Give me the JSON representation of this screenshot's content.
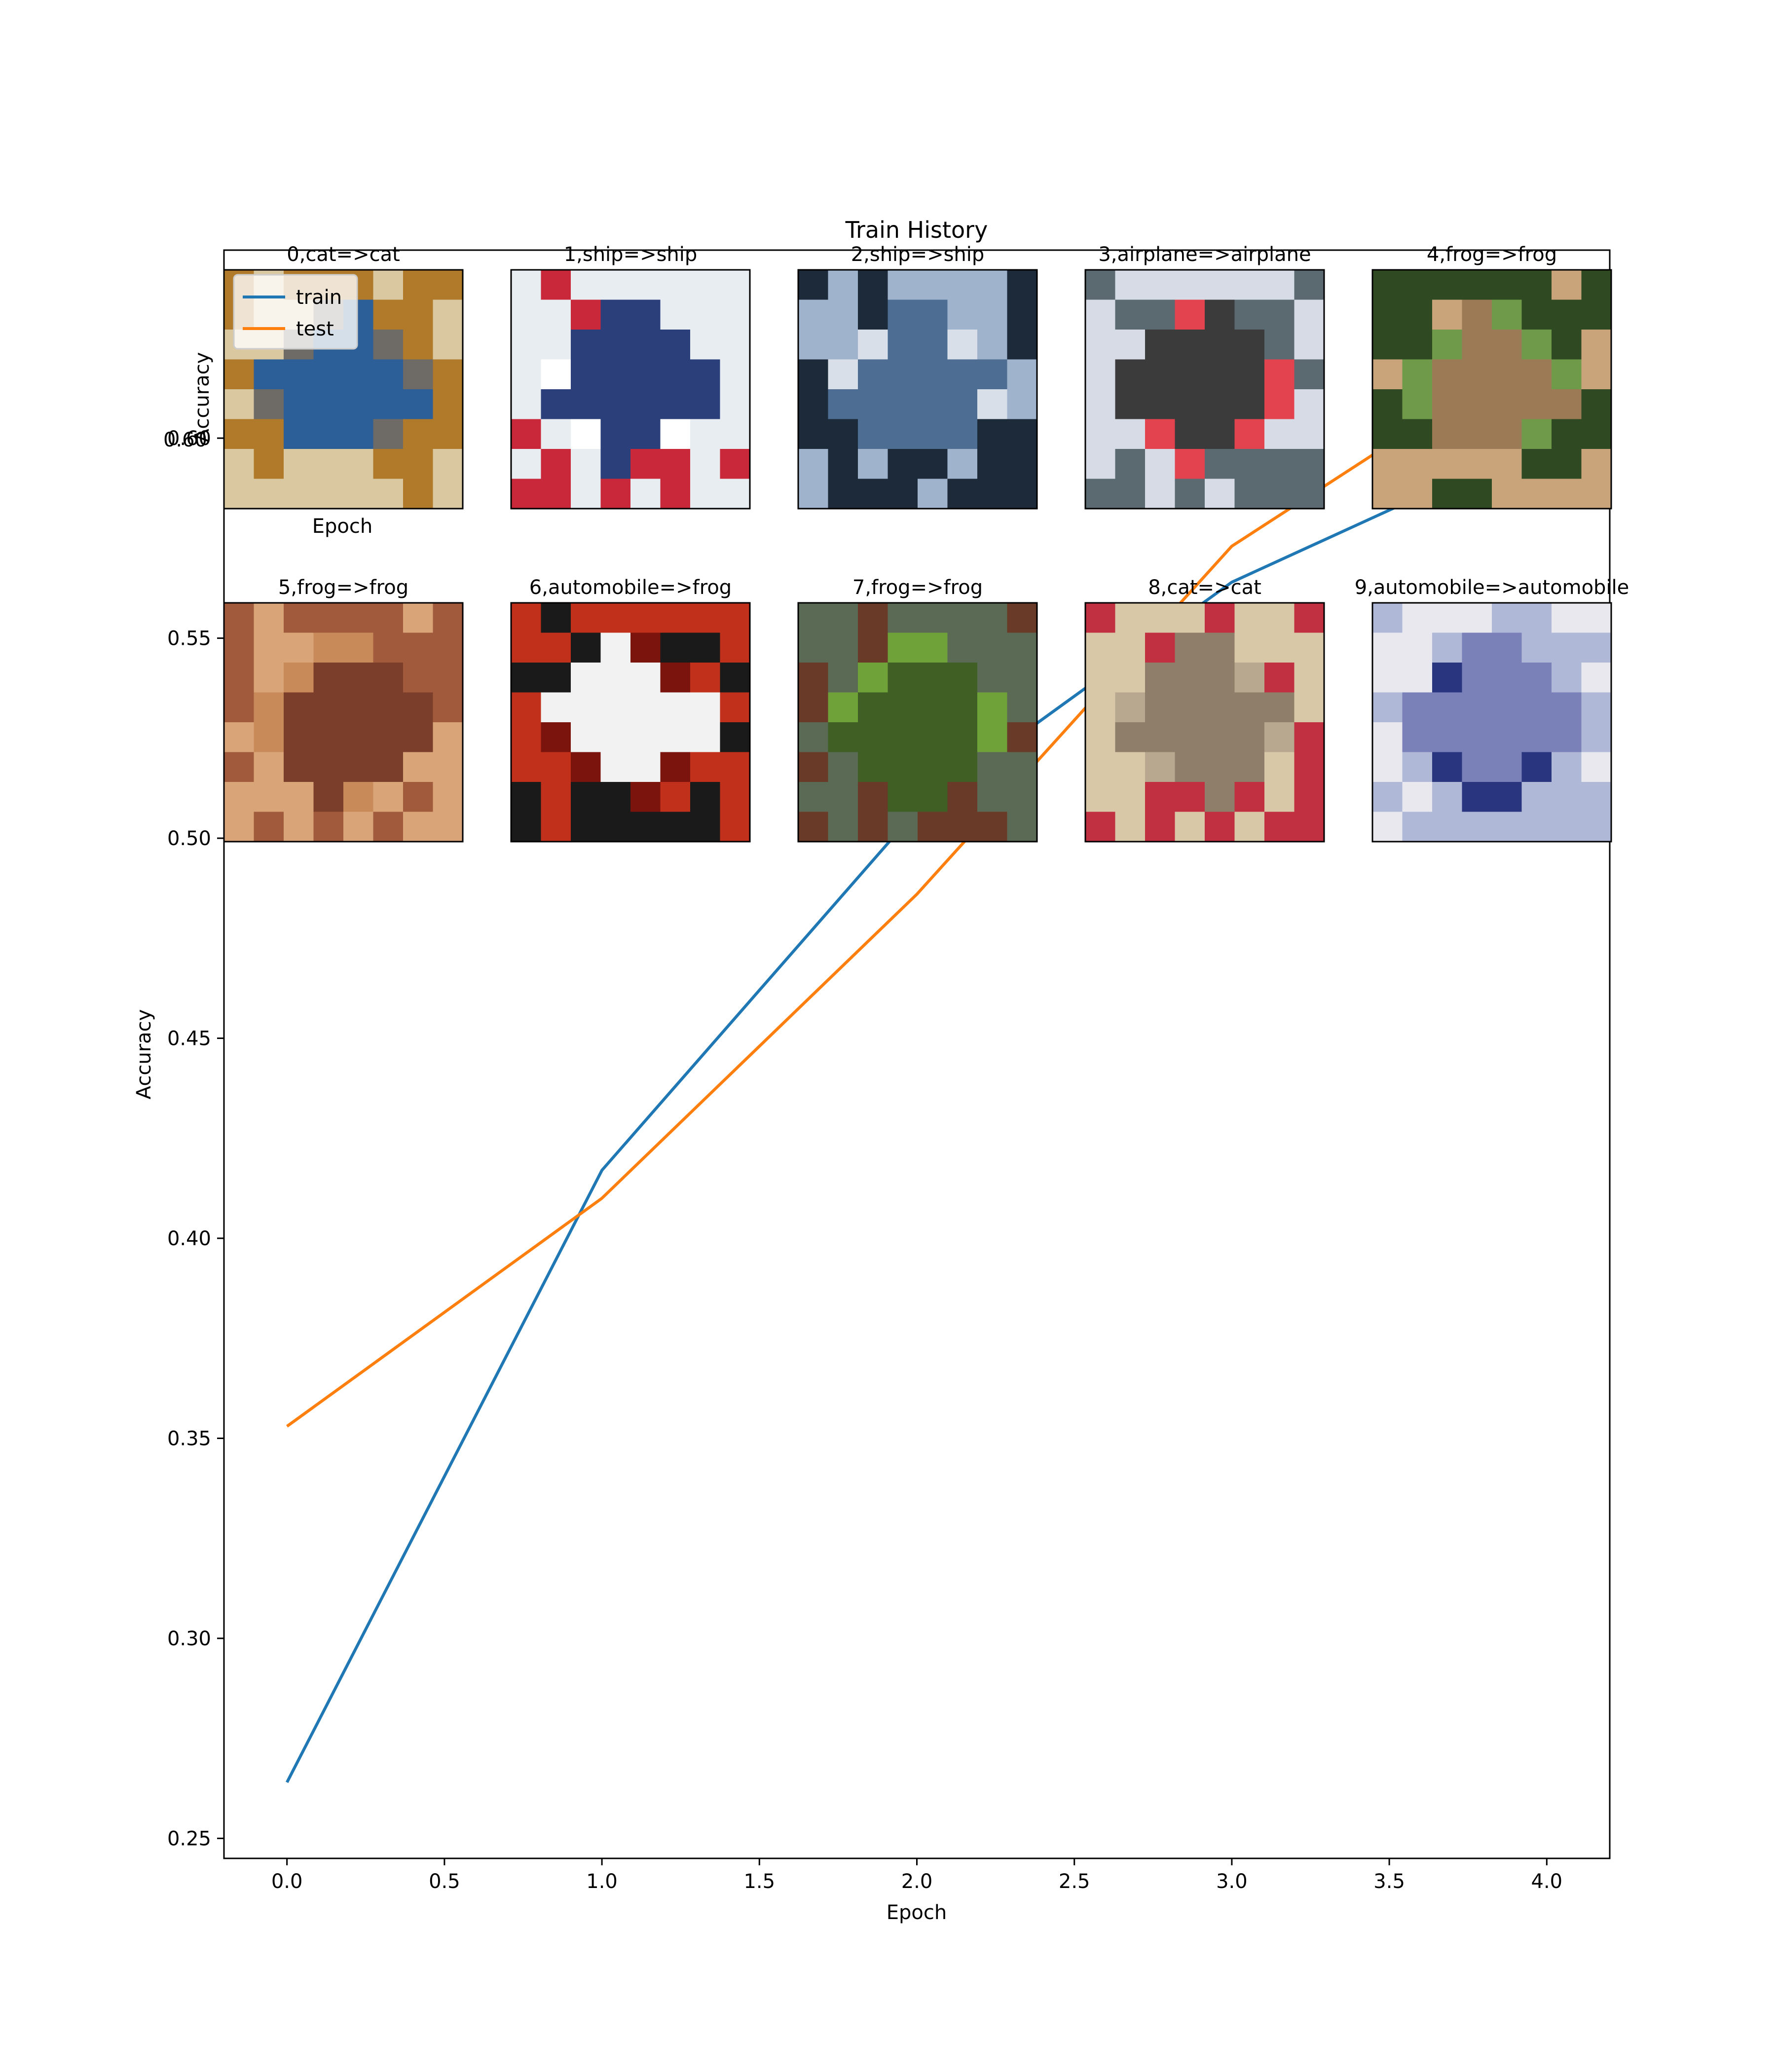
{
  "chart_data": {
    "type": "line",
    "title": "Train History",
    "xlabel": "Epoch",
    "ylabel": "Accuracy",
    "xlim": [
      -0.2,
      4.2
    ],
    "ylim": [
      0.245,
      0.647
    ],
    "xticks": [
      "0.0",
      "0.5",
      "1.0",
      "1.5",
      "2.0",
      "2.5",
      "3.0",
      "3.5",
      "4.0"
    ],
    "yticks": [
      "0.25",
      "0.30",
      "0.35",
      "0.40",
      "0.45",
      "0.50",
      "0.55",
      "0.60"
    ],
    "x": [
      0,
      1,
      2,
      3,
      4
    ],
    "series": [
      {
        "name": "train",
        "color": "#1f77b4",
        "values": [
          0.264,
          0.417,
          0.507,
          0.564,
          0.6
        ]
      },
      {
        "name": "test",
        "color": "#ff7f0e",
        "values": [
          0.353,
          0.41,
          0.486,
          0.573,
          0.624
        ]
      }
    ],
    "legend": {
      "placement": "upper-left",
      "entries": [
        "train",
        "test"
      ]
    },
    "grid": false
  },
  "overlay": {
    "ylabel": "Accuracy",
    "xlabel": "Epoch",
    "ytick": "0.60",
    "images": [
      {
        "label": "0,cat=>cat",
        "icon": "cat-photo",
        "palette": [
          "#b07a2a",
          "#6e6a66",
          "#2c5f98",
          "#d9c8a0"
        ]
      },
      {
        "label": "1,ship=>ship",
        "icon": "ship-photo",
        "palette": [
          "#e8edf2",
          "#ffffff",
          "#2b3f7a",
          "#c8283a"
        ]
      },
      {
        "label": "2,ship=>ship",
        "icon": "ship-photo",
        "palette": [
          "#9fb4cc",
          "#d8dfe8",
          "#4d6d93",
          "#1d2a3a"
        ]
      },
      {
        "label": "3,airplane=>airplane",
        "icon": "airplane-photo",
        "palette": [
          "#d7dbe6",
          "#e2434f",
          "#3b3b3b",
          "#5a6a70"
        ]
      },
      {
        "label": "4,frog=>frog",
        "icon": "frog-photo",
        "palette": [
          "#2f4a22",
          "#6f9a4a",
          "#9c7a55",
          "#c9a47a"
        ]
      },
      {
        "label": "5,frog=>frog",
        "icon": "frog-photo",
        "palette": [
          "#a15a3c",
          "#c98a5a",
          "#7a3e2a",
          "#d8a478"
        ]
      },
      {
        "label": "6,automobile=>frog",
        "icon": "car-photo",
        "palette": [
          "#c0301a",
          "#7a140d",
          "#f2f2f2",
          "#1a1a1a"
        ]
      },
      {
        "label": "7,frog=>frog",
        "icon": "frog-photo",
        "palette": [
          "#5a6a55",
          "#6fa33a",
          "#3f5f25",
          "#6a3a28"
        ]
      },
      {
        "label": "8,cat=>cat",
        "icon": "cat-photo",
        "palette": [
          "#d8c8a8",
          "#b8a890",
          "#8e7e6a",
          "#c03040"
        ]
      },
      {
        "label": "9,automobile=>automobile",
        "icon": "car-photo",
        "palette": [
          "#e8e8ee",
          "#2a3580",
          "#7a80b8",
          "#b0b8d8"
        ]
      }
    ]
  }
}
